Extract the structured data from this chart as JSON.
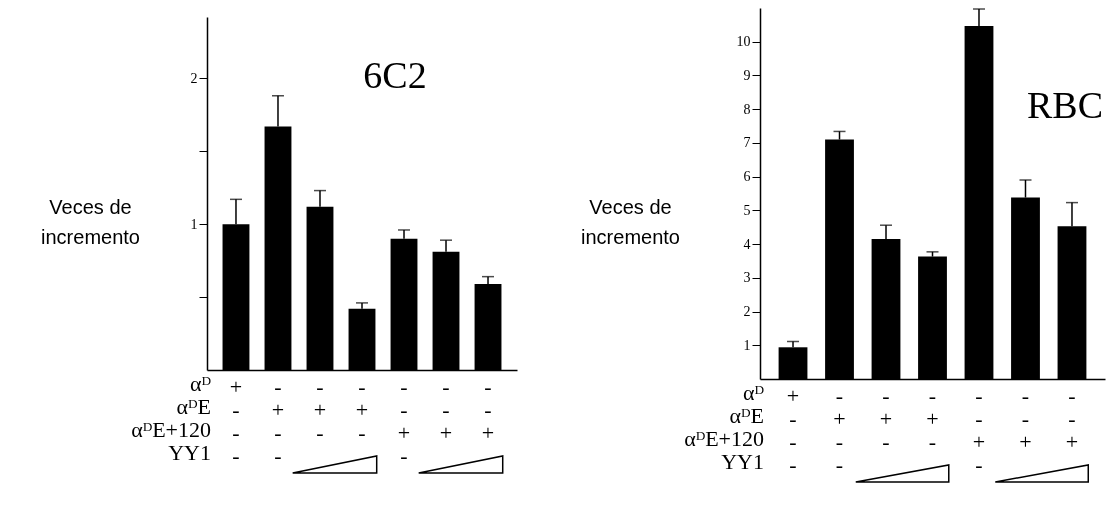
{
  "chart_data": [
    {
      "type": "bar",
      "title": "6C2",
      "ylabel": "Veces de\nincremento",
      "categories": [
        "+\n-\n-\n-",
        "-\n+\n-\n-",
        "-\n+\n-\n",
        "-\n+\n-\n",
        "-\n-\n+\n-",
        "-\n-\n+\n",
        "-\n-\n+\n"
      ],
      "values": [
        1.0,
        1.67,
        1.12,
        0.42,
        0.9,
        0.81,
        0.59
      ],
      "errors": [
        0.17,
        0.21,
        0.11,
        0.04,
        0.06,
        0.08,
        0.05
      ],
      "color": "#000000",
      "ylim": [
        0,
        2.42
      ],
      "yticks": [
        {
          "value": 0.5,
          "label": null
        },
        1,
        {
          "value": 1.5,
          "label": null
        },
        2
      ],
      "annotations": [
        "αᴰ",
        "αᴰE",
        "αᴰE+120",
        "YY1"
      ]
    },
    {
      "type": "bar",
      "title": "RBC",
      "ylabel": "Veces de\nincremento",
      "categories": [
        "+\n-\n-\n-",
        "-\n+\n-\n-",
        "-\n+\n-\n",
        "-\n+\n-\n",
        "-\n-\n+\n-",
        "-\n-\n+\n",
        "-\n-\n+\n"
      ],
      "values": [
        0.94,
        7.1,
        4.15,
        3.63,
        10.47,
        5.38,
        4.53
      ],
      "errors": [
        0.17,
        0.24,
        0.41,
        0.14,
        0.5,
        0.52,
        0.7
      ],
      "color": "#000000",
      "ylim": [
        0,
        11
      ],
      "yticks": [
        1,
        2,
        3,
        4,
        5,
        6,
        7,
        8,
        9,
        10
      ],
      "annotations": [
        "αᴰ",
        "αᴰE",
        "αᴰE+120",
        "YY1"
      ]
    }
  ]
}
